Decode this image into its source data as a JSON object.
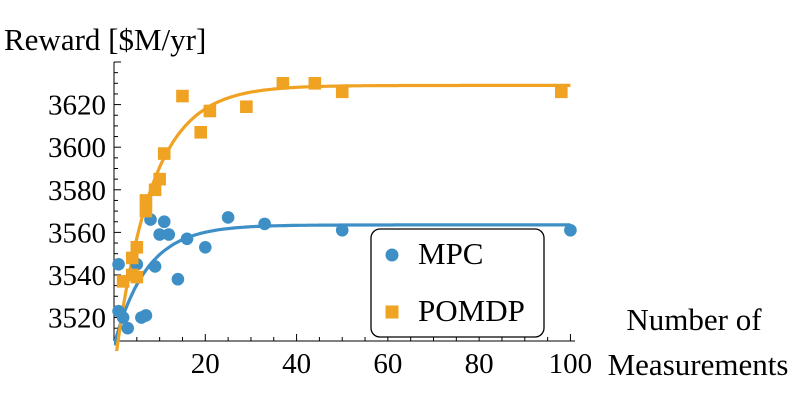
{
  "chart_data": {
    "type": "scatter",
    "ylabel": "Reward [$M/yr]",
    "xlabel_lines": [
      "Number of",
      "Measurements"
    ],
    "xlim": [
      0,
      101
    ],
    "ylim": [
      3509,
      3640
    ],
    "x_ticks": [
      20,
      40,
      60,
      80,
      100
    ],
    "y_ticks": [
      3520,
      3540,
      3560,
      3580,
      3600,
      3620
    ],
    "grid": false,
    "legend_position": "lower-right",
    "series": [
      {
        "name": "MPC",
        "marker": "circle",
        "color": "#3d8fc6",
        "points": [
          [
            1,
            3545
          ],
          [
            1,
            3523
          ],
          [
            2,
            3520
          ],
          [
            3,
            3515
          ],
          [
            5,
            3545
          ],
          [
            6,
            3520
          ],
          [
            7,
            3521
          ],
          [
            8,
            3566
          ],
          [
            9,
            3544
          ],
          [
            10,
            3559
          ],
          [
            11,
            3565
          ],
          [
            12,
            3559
          ],
          [
            14,
            3538
          ],
          [
            16,
            3557
          ],
          [
            20,
            3553
          ],
          [
            25,
            3567
          ],
          [
            33,
            3564
          ],
          [
            50,
            3561
          ],
          [
            100,
            3561
          ]
        ],
        "fit": {
          "asymptote": 3563.5,
          "start": 3507,
          "rate": 0.14
        }
      },
      {
        "name": "POMDP",
        "marker": "square",
        "color": "#f0a222",
        "points": [
          [
            2,
            3537
          ],
          [
            4,
            3540
          ],
          [
            4,
            3548
          ],
          [
            5,
            3553
          ],
          [
            5,
            3539
          ],
          [
            7,
            3575
          ],
          [
            7,
            3570
          ],
          [
            9,
            3580
          ],
          [
            10,
            3585
          ],
          [
            11,
            3597
          ],
          [
            15,
            3624
          ],
          [
            19,
            3607
          ],
          [
            21,
            3617
          ],
          [
            29,
            3619
          ],
          [
            37,
            3630
          ],
          [
            44,
            3630
          ],
          [
            50,
            3626
          ],
          [
            98,
            3626
          ]
        ],
        "fit": {
          "asymptote": 3629,
          "start": 3495,
          "rate": 0.125
        }
      }
    ]
  }
}
